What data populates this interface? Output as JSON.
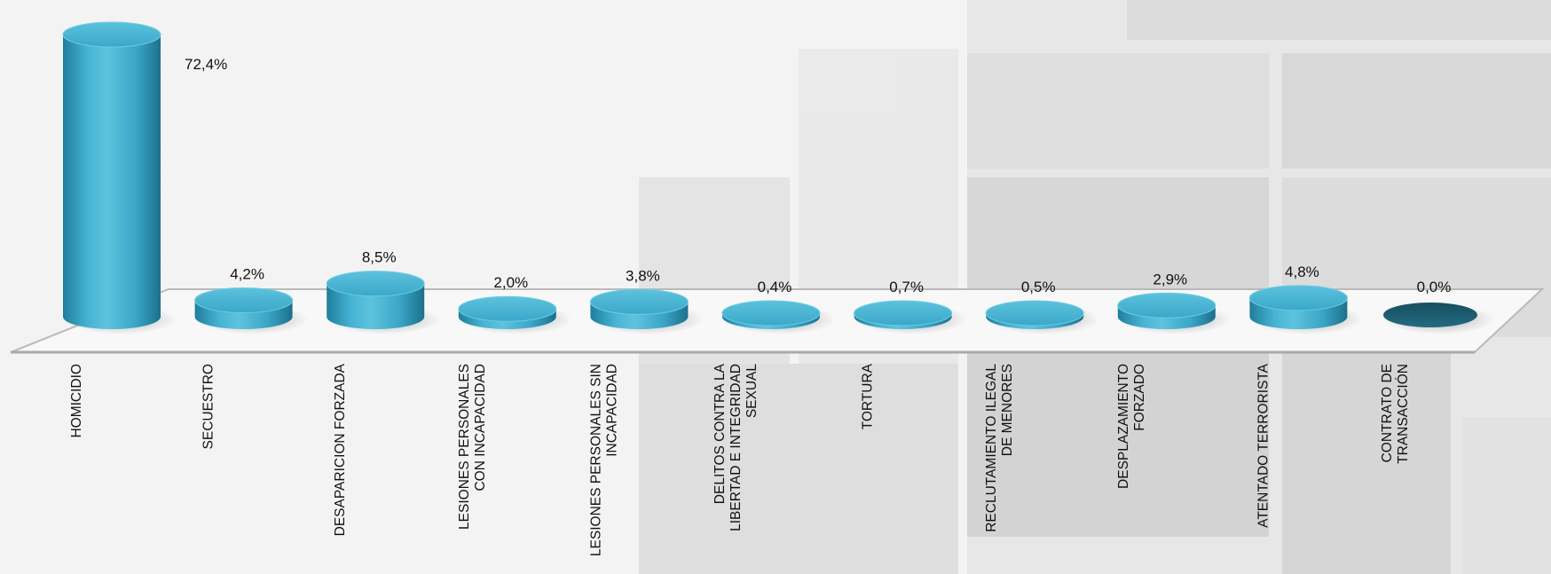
{
  "chart_data": {
    "type": "bar",
    "style": "3d-cylinder",
    "categories": [
      "HOMICIDIO",
      "SECUESTRO",
      "DESAPARICION FORZADA",
      "LESIONES PERSONALES CON INCAPACIDAD",
      "LESIONES PERSONALES SIN INCAPACIDAD",
      "DELITOS CONTRA LA LIBERTAD E INTEGRIDAD SEXUAL",
      "TORTURA",
      "RECLUTAMIENTO ILEGAL DE MENORES",
      "DESPLAZAMIENTO FORZADO",
      "ATENTADO TERRORISTA",
      "CONTRATO DE TRANSACCIÓN"
    ],
    "category_lines": [
      [
        "HOMICIDIO"
      ],
      [
        "SECUESTRO"
      ],
      [
        "DESAPARICION FORZADA"
      ],
      [
        "LESIONES PERSONALES",
        "CON INCAPACIDAD"
      ],
      [
        "LESIONES PERSONALES SIN",
        "INCAPACIDAD"
      ],
      [
        "DELITOS CONTRA LA",
        "LIBERTAD E INTEGRIDAD",
        "SEXUAL"
      ],
      [
        "TORTURA"
      ],
      [
        "RECLUTAMIENTO ILEGAL",
        "DE MENORES"
      ],
      [
        "DESPLAZAMIENTO",
        "FORZADO"
      ],
      [
        "ATENTADO TERRORISTA"
      ],
      [
        "CONTRATO DE",
        "TRANSACCIÓN"
      ]
    ],
    "values": [
      72.4,
      4.2,
      8.5,
      2.0,
      3.8,
      0.4,
      0.7,
      0.5,
      2.9,
      4.8,
      0.0
    ],
    "data_labels": [
      "72,4%",
      "4,2%",
      "8,5%",
      "2,0%",
      "3,8%",
      "0,4%",
      "0,7%",
      "0,5%",
      "2,9%",
      "4,8%",
      "0,0%"
    ],
    "unit": "%",
    "ylim": [
      0,
      75
    ],
    "grid": false,
    "legend": "none",
    "colors": {
      "bar": "#3aa9cc",
      "bar_top": "#4fb8d6",
      "bar_dark": "#1d7a96",
      "zero_bar": "#1e5f73",
      "floor": "#f7f7f7",
      "floor_edge": "#b9b9b9"
    }
  }
}
